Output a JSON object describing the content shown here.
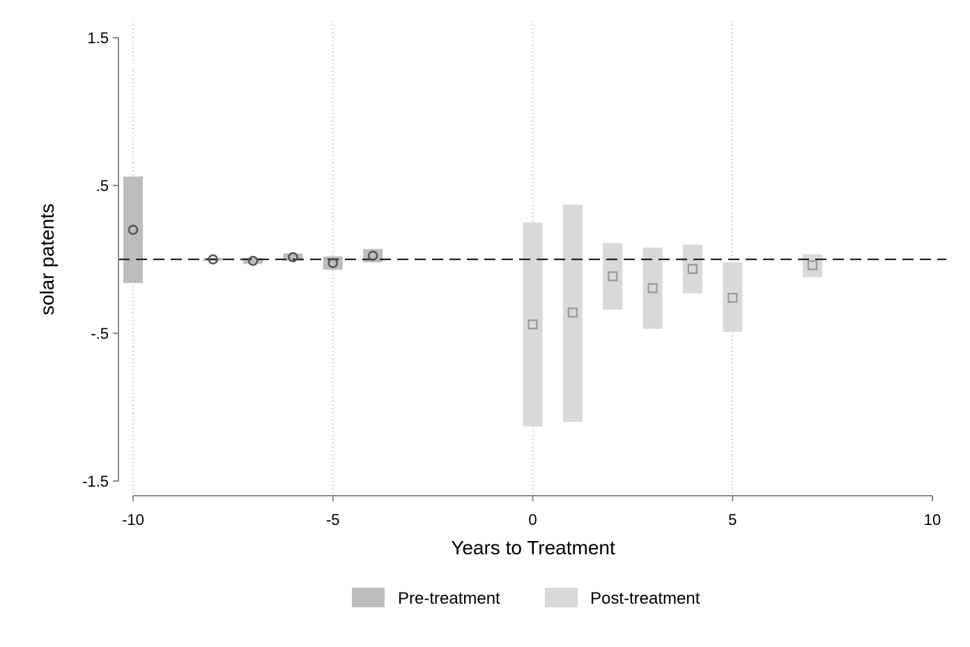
{
  "chart_data": {
    "type": "scatter",
    "title": "",
    "xlabel": "Years to Treatment",
    "ylabel": "solar patents",
    "xlim": [
      -10,
      10
    ],
    "ylim": [
      -1.5,
      1.5
    ],
    "x_ticks": [
      -10,
      -5,
      0,
      5,
      10
    ],
    "x_tick_labels": [
      "-10",
      "-5",
      "0",
      "5",
      "10"
    ],
    "y_ticks": [
      1.5,
      0.5,
      -0.5,
      -1.5
    ],
    "y_tick_labels": [
      "1.5",
      ".5",
      "-.5",
      "-1.5"
    ],
    "vertical_reference_lines": [
      -10,
      -5,
      0,
      5
    ],
    "reference_line_y": 0,
    "legend_position": "bottom",
    "series": [
      {
        "name": "Pre-treatment",
        "marker": "circle",
        "color": "#bdbdbd",
        "marker_color": "#555555",
        "points": [
          {
            "x": -10,
            "y": 0.2,
            "ci": [
              -0.16,
              0.56
            ]
          },
          {
            "x": -8,
            "y": 0.0,
            "ci": [
              -0.01,
              0.01
            ]
          },
          {
            "x": -7,
            "y": -0.01,
            "ci": [
              -0.03,
              0.01
            ]
          },
          {
            "x": -6,
            "y": 0.015,
            "ci": [
              -0.01,
              0.04
            ]
          },
          {
            "x": -5,
            "y": -0.025,
            "ci": [
              -0.07,
              0.02
            ]
          },
          {
            "x": -4,
            "y": 0.025,
            "ci": [
              -0.02,
              0.07
            ]
          }
        ]
      },
      {
        "name": "Post-treatment",
        "marker": "square",
        "color": "#d9d9d9",
        "marker_color": "#999999",
        "points": [
          {
            "x": 0,
            "y": -0.44,
            "ci": [
              -1.13,
              0.25
            ]
          },
          {
            "x": 1,
            "y": -0.36,
            "ci": [
              -1.1,
              0.37
            ]
          },
          {
            "x": 2,
            "y": -0.115,
            "ci": [
              -0.34,
              0.11
            ]
          },
          {
            "x": 3,
            "y": -0.195,
            "ci": [
              -0.47,
              0.08
            ]
          },
          {
            "x": 4,
            "y": -0.065,
            "ci": [
              -0.23,
              0.1
            ]
          },
          {
            "x": 5,
            "y": -0.26,
            "ci": [
              -0.49,
              -0.02
            ]
          },
          {
            "x": 7,
            "y": -0.04,
            "ci": [
              -0.12,
              0.035
            ]
          }
        ]
      }
    ]
  }
}
